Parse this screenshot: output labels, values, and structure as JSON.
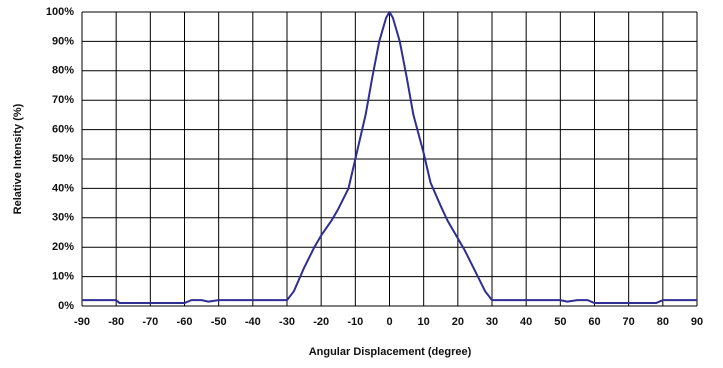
{
  "chart_data": {
    "type": "line",
    "x_label": "Angular Displacement (degree)",
    "y_label": "Relative Intensity (%)",
    "x": [
      -90,
      -80,
      -79,
      -60,
      -58,
      -55,
      -53,
      -50,
      -40,
      -30,
      -28,
      -25,
      -22,
      -20,
      -17,
      -15,
      -12,
      -10,
      -7,
      -5,
      -3,
      -1,
      0,
      1,
      3,
      5,
      7,
      10,
      12,
      15,
      17,
      20,
      22,
      25,
      28,
      30,
      40,
      50,
      52,
      55,
      58,
      60,
      78,
      80,
      90
    ],
    "values": [
      2,
      2,
      1,
      1,
      2,
      2,
      1.5,
      2,
      2,
      2,
      5,
      13,
      20,
      24,
      29,
      33,
      40,
      50,
      65,
      78,
      90,
      98,
      100,
      98,
      90,
      78,
      65,
      52,
      42,
      34,
      29,
      23,
      19,
      12,
      5,
      2,
      2,
      2,
      1.5,
      2,
      2,
      1,
      1,
      2,
      2
    ],
    "color": "#2e2e94",
    "xlim": [
      -90,
      90
    ],
    "xticks": [
      -90,
      -80,
      -70,
      -60,
      -50,
      -40,
      -30,
      -20,
      -10,
      0,
      10,
      20,
      30,
      40,
      50,
      60,
      70,
      80,
      90
    ],
    "ylim": [
      0,
      100
    ],
    "yticks": [
      {
        "value": 0,
        "label": "0%"
      },
      {
        "value": 10,
        "label": "10%"
      },
      {
        "value": 20,
        "label": "20%"
      },
      {
        "value": 30,
        "label": "30%"
      },
      {
        "value": 40,
        "label": "40%"
      },
      {
        "value": 50,
        "label": "50%"
      },
      {
        "value": 60,
        "label": "60%"
      },
      {
        "value": 70,
        "label": "70%"
      },
      {
        "value": 80,
        "label": "80%"
      },
      {
        "value": 90,
        "label": "90%"
      },
      {
        "value": 100,
        "label": "100%"
      }
    ],
    "grid": true
  }
}
